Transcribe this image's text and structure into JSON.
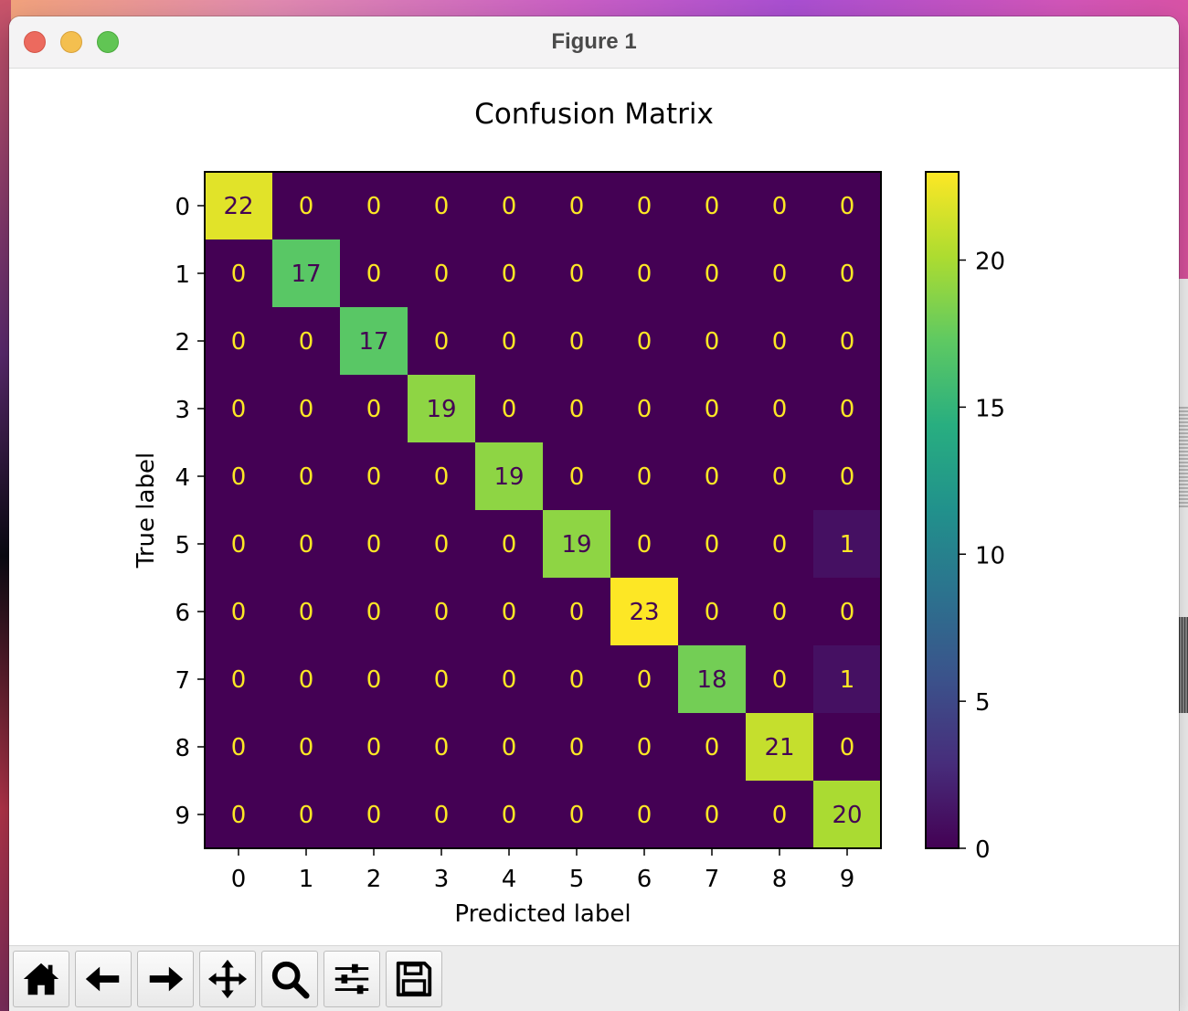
{
  "window": {
    "title": "Figure 1"
  },
  "toolbar": {
    "buttons": [
      {
        "name": "home",
        "icon": "home-icon"
      },
      {
        "name": "back",
        "icon": "arrow-left-icon"
      },
      {
        "name": "forward",
        "icon": "arrow-right-icon"
      },
      {
        "name": "pan",
        "icon": "move-icon"
      },
      {
        "name": "zoom",
        "icon": "magnifier-icon"
      },
      {
        "name": "configure-subplots",
        "icon": "sliders-icon"
      },
      {
        "name": "save",
        "icon": "floppy-disk-icon"
      }
    ]
  },
  "chart_data": {
    "type": "heatmap",
    "title": "Confusion Matrix",
    "xlabel": "Predicted label",
    "ylabel": "True label",
    "x_categories": [
      "0",
      "1",
      "2",
      "3",
      "4",
      "5",
      "6",
      "7",
      "8",
      "9"
    ],
    "y_categories": [
      "0",
      "1",
      "2",
      "3",
      "4",
      "5",
      "6",
      "7",
      "8",
      "9"
    ],
    "matrix": [
      [
        22,
        0,
        0,
        0,
        0,
        0,
        0,
        0,
        0,
        0
      ],
      [
        0,
        17,
        0,
        0,
        0,
        0,
        0,
        0,
        0,
        0
      ],
      [
        0,
        0,
        17,
        0,
        0,
        0,
        0,
        0,
        0,
        0
      ],
      [
        0,
        0,
        0,
        19,
        0,
        0,
        0,
        0,
        0,
        0
      ],
      [
        0,
        0,
        0,
        0,
        19,
        0,
        0,
        0,
        0,
        0
      ],
      [
        0,
        0,
        0,
        0,
        0,
        19,
        0,
        0,
        0,
        1
      ],
      [
        0,
        0,
        0,
        0,
        0,
        0,
        23,
        0,
        0,
        0
      ],
      [
        0,
        0,
        0,
        0,
        0,
        0,
        0,
        18,
        0,
        1
      ],
      [
        0,
        0,
        0,
        0,
        0,
        0,
        0,
        0,
        21,
        0
      ],
      [
        0,
        0,
        0,
        0,
        0,
        0,
        0,
        0,
        0,
        20
      ]
    ],
    "colormap": "viridis",
    "colorbar": {
      "vmin": 0,
      "vmax": 23,
      "ticks": [
        0,
        5,
        10,
        15,
        20
      ]
    },
    "grid": false
  }
}
